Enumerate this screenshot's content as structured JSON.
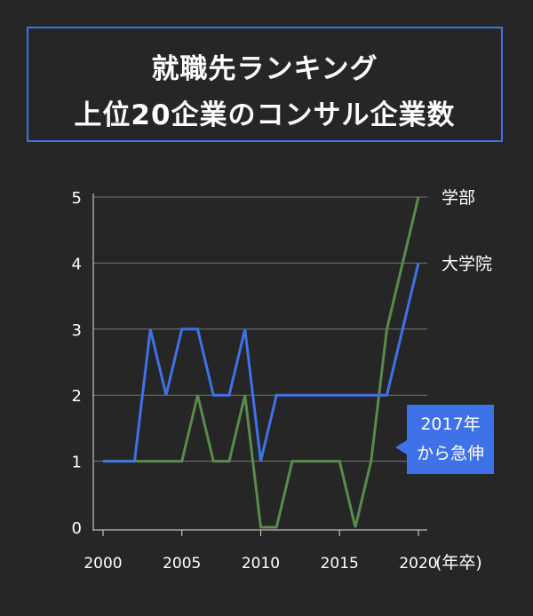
{
  "title": {
    "line1": "就職先ランキング",
    "line2": "上位20企業のコンサル企業数"
  },
  "callout": {
    "line1": "2017年",
    "line2": "から急伸"
  },
  "colors": {
    "background": "#262626",
    "accent_blue": "#3f72e8",
    "series_green": "#5a8a4c",
    "grid": "#777777",
    "text": "#ffffff"
  },
  "chart_data": {
    "type": "line",
    "title": "就職先ランキング 上位20企業のコンサル企業数",
    "xlabel": "(年卒)",
    "ylabel": "",
    "x": [
      2000,
      2001,
      2002,
      2003,
      2004,
      2005,
      2006,
      2007,
      2008,
      2009,
      2010,
      2011,
      2012,
      2013,
      2014,
      2015,
      2016,
      2017,
      2018,
      2019,
      2020
    ],
    "xticks": [
      "2000",
      "2005",
      "2010",
      "2015",
      "2020"
    ],
    "yticks": [
      "0",
      "1",
      "2",
      "3",
      "4",
      "5"
    ],
    "xlim": [
      2000,
      2020
    ],
    "ylim": [
      0,
      5
    ],
    "grid": "horizontal",
    "series": [
      {
        "name": "大学院",
        "color": "#3f72e8",
        "values": [
          1,
          1,
          1,
          3,
          2,
          3,
          3,
          2,
          2,
          3,
          1,
          2,
          2,
          2,
          2,
          2,
          2,
          2,
          2,
          3,
          4
        ]
      },
      {
        "name": "学部",
        "color": "#5a8a4c",
        "values": [
          1,
          1,
          1,
          1,
          1,
          1,
          2,
          1,
          1,
          2,
          0,
          0,
          1,
          1,
          1,
          1,
          0,
          1,
          3,
          4,
          5
        ]
      }
    ]
  }
}
